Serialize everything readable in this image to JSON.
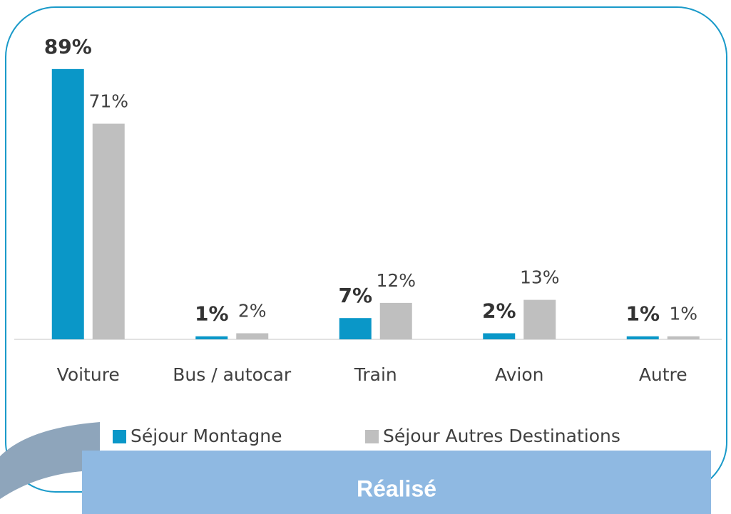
{
  "chart_data": {
    "type": "bar",
    "categories": [
      "Voiture",
      "Bus / autocar",
      "Train",
      "Avion",
      "Autre"
    ],
    "series": [
      {
        "name": "Séjour Montagne",
        "color": "#0a97c8",
        "values": [
          89,
          1,
          7,
          2,
          1
        ],
        "value_labels": [
          "89%",
          "1%",
          "7%",
          "2%",
          "1%"
        ]
      },
      {
        "name": "Séjour Autres Destinations",
        "color": "#bfbfbf",
        "values": [
          71,
          2,
          12,
          13,
          1
        ],
        "value_labels": [
          "71%",
          "2%",
          "12%",
          "13%",
          "1%"
        ]
      }
    ],
    "ylim": [
      0,
      100
    ],
    "annotation": "Réalisé"
  }
}
